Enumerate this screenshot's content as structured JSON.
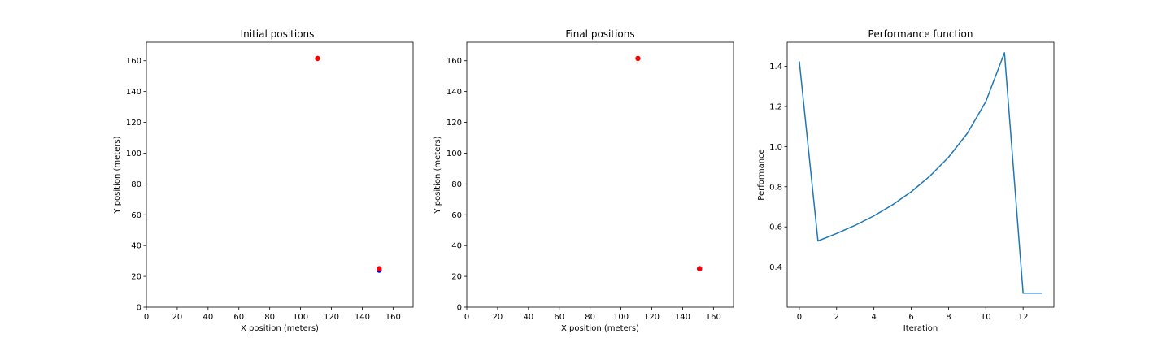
{
  "chart_data": [
    {
      "type": "scatter",
      "title": "Initial positions",
      "xlabel": "X position (meters)",
      "ylabel": "Y position (meters)",
      "xlim": [
        0,
        173
      ],
      "ylim": [
        0,
        172
      ],
      "xticks": [
        0,
        20,
        40,
        60,
        80,
        100,
        120,
        140,
        160
      ],
      "yticks": [
        0,
        20,
        40,
        60,
        80,
        100,
        120,
        140,
        160
      ],
      "grid": false,
      "series": [
        {
          "color": "#0000ff",
          "points": [
            {
              "x": 151,
              "y": 24
            }
          ]
        },
        {
          "color": "#ff0000",
          "points": [
            {
              "x": 111,
              "y": 161.5
            },
            {
              "x": 151,
              "y": 25
            }
          ]
        }
      ]
    },
    {
      "type": "scatter",
      "title": "Final positions",
      "xlabel": "X position (meters)",
      "ylabel": "Y position (meters)",
      "xlim": [
        0,
        173
      ],
      "ylim": [
        0,
        172
      ],
      "xticks": [
        0,
        20,
        40,
        60,
        80,
        100,
        120,
        140,
        160
      ],
      "yticks": [
        0,
        20,
        40,
        60,
        80,
        100,
        120,
        140,
        160
      ],
      "grid": false,
      "series": [
        {
          "color": "#0000ff",
          "points": [
            {
              "x": 151,
              "y": 25
            }
          ]
        },
        {
          "color": "#ff0000",
          "points": [
            {
              "x": 111,
              "y": 161.5
            },
            {
              "x": 151,
              "y": 25
            }
          ]
        }
      ]
    },
    {
      "type": "line",
      "title": "Performance function",
      "xlabel": "Iteration",
      "ylabel": "Performance",
      "xlim": [
        -0.65,
        13.65
      ],
      "ylim": [
        0.2,
        1.52
      ],
      "xticks": [
        0,
        2,
        4,
        6,
        8,
        10,
        12
      ],
      "yticks": [
        0.4,
        0.6,
        0.8,
        1.0,
        1.2,
        1.4
      ],
      "ytick_decimals": 1,
      "grid": false,
      "series": [
        {
          "color": "#1f77b4",
          "x": [
            0,
            1,
            2,
            3,
            4,
            5,
            6,
            7,
            8,
            9,
            10,
            11,
            12,
            13
          ],
          "values": [
            1.425,
            0.53,
            0.567,
            0.608,
            0.655,
            0.71,
            0.775,
            0.853,
            0.947,
            1.065,
            1.224,
            1.468,
            0.27,
            0.27
          ]
        }
      ]
    }
  ]
}
